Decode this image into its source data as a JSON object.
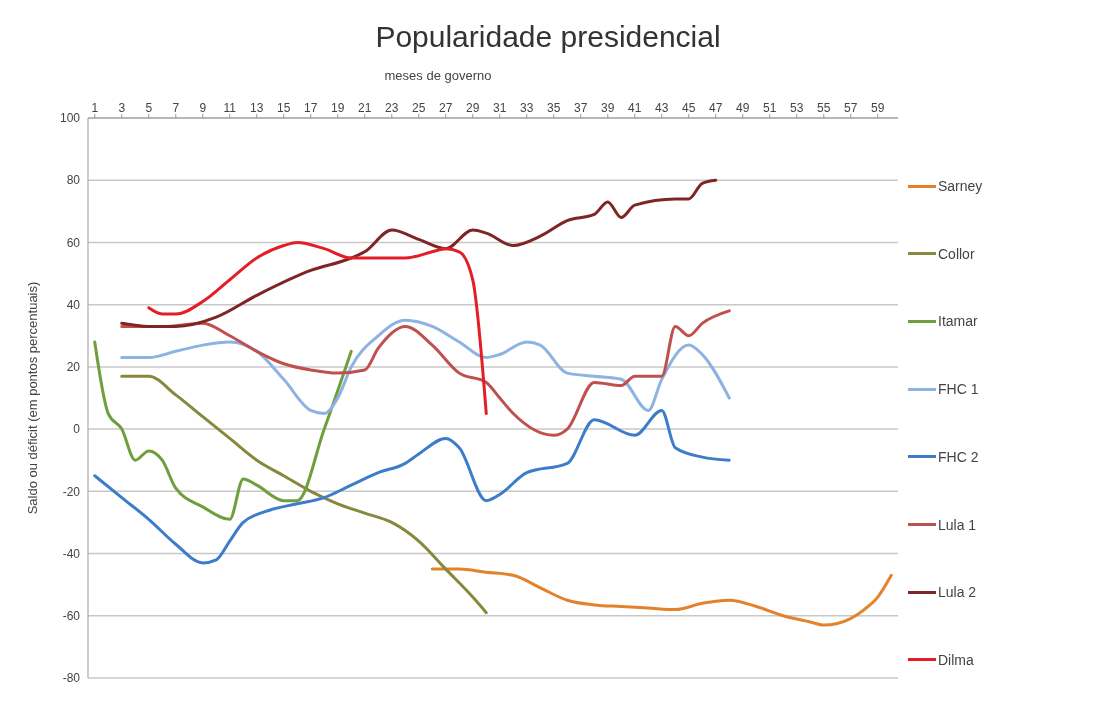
{
  "chart_data": {
    "type": "line",
    "title": "Popularidade presidencial",
    "xlabel": "meses de governo",
    "ylabel": "Saldo ou déficit (em pontos percentuais)",
    "xlim": [
      0.5,
      60.5
    ],
    "xticks": [
      1,
      3,
      5,
      7,
      9,
      11,
      13,
      15,
      17,
      19,
      21,
      23,
      25,
      27,
      29,
      31,
      33,
      35,
      37,
      39,
      41,
      43,
      45,
      47,
      49,
      51,
      53,
      55,
      57,
      59
    ],
    "ylim": [
      -80,
      100
    ],
    "yticks": [
      -80,
      -60,
      -40,
      -20,
      0,
      20,
      40,
      60,
      80,
      100
    ],
    "grid": "y",
    "legend": "right",
    "series": [
      {
        "name": "Sarney",
        "color": "#e3822a",
        "x": [
          26,
          28,
          30,
          32,
          34,
          36,
          38,
          40,
          42,
          44,
          46,
          48,
          50,
          52,
          54,
          55,
          56,
          58,
          59,
          60
        ],
        "values": [
          -45,
          -45,
          -46,
          -47,
          -51,
          -55,
          -56.5,
          -57,
          -57.5,
          -58,
          -56,
          -55,
          -57,
          -60,
          -62,
          -63,
          -62.5,
          -58,
          -54,
          -47
        ]
      },
      {
        "name": "Collor",
        "color": "#86893c",
        "x": [
          3,
          5,
          7,
          9,
          11,
          13,
          15,
          17,
          19,
          21,
          23,
          25,
          27,
          29,
          30
        ],
        "values": [
          17,
          17,
          11,
          4,
          -3,
          -10,
          -15,
          -20,
          -24,
          -27,
          -30,
          -36,
          -45,
          -54,
          -59
        ]
      },
      {
        "name": "Itamar",
        "color": "#6e9f3c",
        "x": [
          1,
          2,
          3,
          4,
          5,
          6,
          7,
          9,
          11,
          12,
          13,
          15,
          16,
          18,
          20
        ],
        "values": [
          28,
          5,
          0,
          -10,
          -7,
          -10,
          -19,
          -25,
          -29,
          -16,
          -18,
          -23,
          -23,
          0,
          25
        ]
      },
      {
        "name": "FHC 1",
        "color": "#8db3e2",
        "x": [
          3,
          5,
          7,
          9,
          11,
          13,
          15,
          17,
          18,
          19,
          20,
          22,
          24,
          26,
          28,
          30,
          31,
          33,
          34,
          36,
          38,
          40,
          42,
          43,
          45,
          46,
          48
        ],
        "values": [
          23,
          23,
          25,
          27,
          28,
          25,
          16,
          6,
          5,
          10,
          20,
          30,
          35,
          33,
          28,
          23,
          24,
          28,
          27,
          18,
          17,
          16,
          6,
          16,
          27,
          24,
          10
        ]
      },
      {
        "name": "FHC 2",
        "color": "#3d7cc9",
        "x": [
          1,
          3,
          5,
          7,
          9,
          10,
          11,
          12,
          14,
          16,
          18,
          20,
          22,
          24,
          25,
          27,
          28,
          30,
          31,
          33,
          36,
          38,
          41,
          43,
          44,
          46,
          48
        ],
        "values": [
          -15,
          -22,
          -29,
          -37,
          -43,
          -42,
          -36,
          -30,
          -26,
          -24,
          -22,
          -18,
          -14,
          -11,
          -8,
          -3,
          -6,
          -23,
          -21,
          -14,
          -11,
          3,
          -2,
          6,
          -6,
          -9,
          -10
        ]
      },
      {
        "name": "Lula 1",
        "color": "#c0504d",
        "x": [
          3,
          6,
          9,
          11,
          13,
          15,
          17,
          19,
          21,
          22,
          24,
          26,
          28,
          30,
          31,
          32,
          35,
          36,
          38,
          40,
          41,
          43,
          44,
          45,
          46,
          48
        ],
        "values": [
          33,
          33,
          34,
          30,
          25,
          21,
          19,
          18,
          19,
          26,
          33,
          27,
          18,
          15,
          10,
          5,
          -2,
          0,
          15,
          14,
          17,
          17,
          33,
          30,
          34,
          38
        ]
      },
      {
        "name": "Lula 2",
        "color": "#7f2525",
        "x": [
          3,
          5,
          7,
          10,
          13,
          17,
          20,
          21,
          23,
          25,
          27,
          29,
          30,
          32,
          34,
          36,
          38,
          39,
          40,
          41,
          44,
          45,
          46,
          47
        ],
        "values": [
          34,
          33,
          33,
          36,
          43,
          51,
          55,
          57,
          64,
          61,
          58,
          64,
          63,
          59,
          62,
          67,
          69,
          73,
          68,
          72,
          74,
          74,
          79,
          80
        ]
      },
      {
        "name": "Dilma",
        "color": "#e41e26",
        "x": [
          5,
          6,
          7,
          9,
          11,
          13,
          15,
          16,
          18,
          20,
          22,
          24,
          26,
          27,
          28,
          29,
          30
        ],
        "values": [
          39,
          37,
          37,
          41,
          48,
          55,
          59,
          60,
          58,
          55,
          55,
          55,
          57,
          58,
          57,
          48,
          5
        ]
      }
    ]
  }
}
